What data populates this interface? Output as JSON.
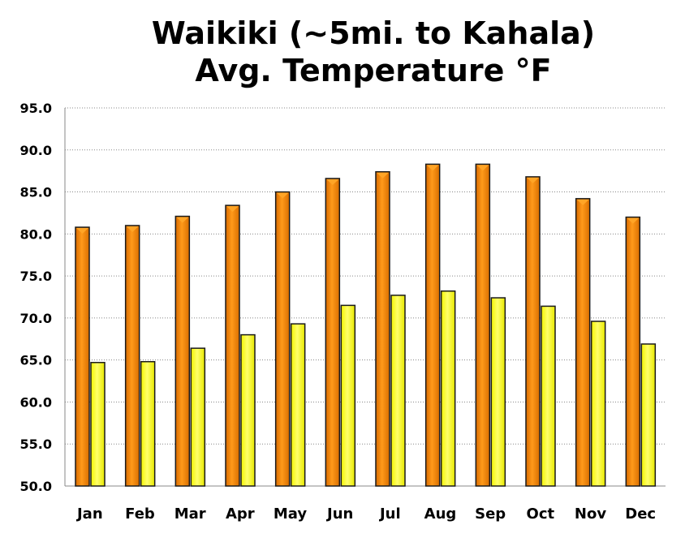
{
  "chart_data": {
    "type": "bar",
    "title": [
      "Waikiki (~5mi. to Kahala)",
      "Avg. Temperature °F"
    ],
    "xlabel": "",
    "ylabel": "",
    "categories": [
      "Jan",
      "Feb",
      "Mar",
      "Apr",
      "May",
      "Jun",
      "Jul",
      "Aug",
      "Sep",
      "Oct",
      "Nov",
      "Dec"
    ],
    "series": [
      {
        "values": [
          80.8,
          81.0,
          82.1,
          83.4,
          85.0,
          86.6,
          87.4,
          88.3,
          88.3,
          86.8,
          84.2,
          82.0
        ]
      },
      {
        "values": [
          64.7,
          64.8,
          66.4,
          68.0,
          69.3,
          71.5,
          72.7,
          73.2,
          72.4,
          71.4,
          69.6,
          66.9
        ]
      }
    ],
    "ylim": [
      50,
      95
    ],
    "yticks": [
      "50.0",
      "55.0",
      "60.0",
      "65.0",
      "70.0",
      "75.0",
      "80.0",
      "85.0",
      "90.0",
      "95.0"
    ],
    "grid": true,
    "legend": "none"
  },
  "colors": {
    "high_bar": "#f28000",
    "high_bar_highlight": "#ffa526",
    "high_bar_dark": "#c45a00",
    "low_bar": "#ffff3a",
    "low_bar_highlight": "#ffff9a",
    "low_bar_dark": "#d8d800",
    "bar_outline": "#1a1a1a",
    "grid": "#888888",
    "axis": "#888888"
  }
}
